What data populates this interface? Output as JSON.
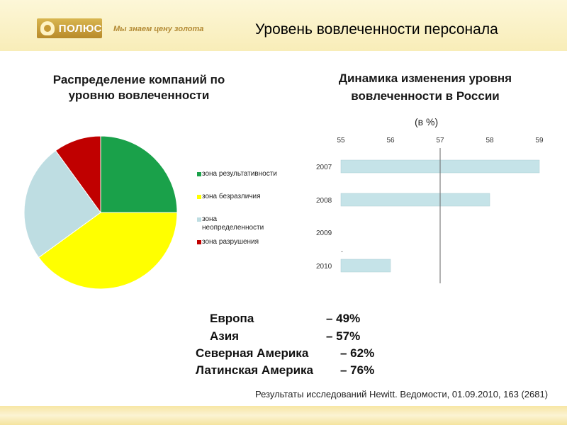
{
  "header": {
    "logo_text": "ПОЛЮС",
    "tagline": "Мы знаем цену золота",
    "title": "Уровень вовлеченности персонала"
  },
  "colors": {
    "green": "#1aa14a",
    "yellow": "#ffff00",
    "light_blue": "#bedde2",
    "red": "#c00000",
    "bar_fill": "#c5e3e8"
  },
  "chart_data": [
    {
      "type": "pie",
      "title": "Распределение компаний по уровню вовлеченности",
      "categories": [
        "зона результативности",
        "зона безразличия",
        "зона неопределенности",
        "зона разрушения"
      ],
      "values": [
        25,
        40,
        25,
        10
      ],
      "legend_position": "right"
    },
    {
      "type": "bar",
      "orientation": "horizontal",
      "title": "Динамика изменения уровня вовлеченности в России",
      "unit_label": "(в %)",
      "categories": [
        "2007",
        "2008",
        "2009",
        "2010"
      ],
      "values": [
        59,
        58,
        null,
        56
      ],
      "missing_label": "-",
      "xlim": [
        55,
        59
      ],
      "xticks": [
        "55",
        "56",
        "57",
        "58",
        "59"
      ],
      "reference_line": 57,
      "grid": false
    }
  ],
  "stats": [
    {
      "region": "Европа",
      "value": "– 49%"
    },
    {
      "region": "Азия",
      "value": "– 57%"
    },
    {
      "region": "Северная Америка",
      "value": "– 62%"
    },
    {
      "region": "Латинская Америка",
      "value": "– 76%"
    }
  ],
  "source": "Результаты исследований Hewitt. Ведомости, 01.09.2010, 163 (2681)"
}
